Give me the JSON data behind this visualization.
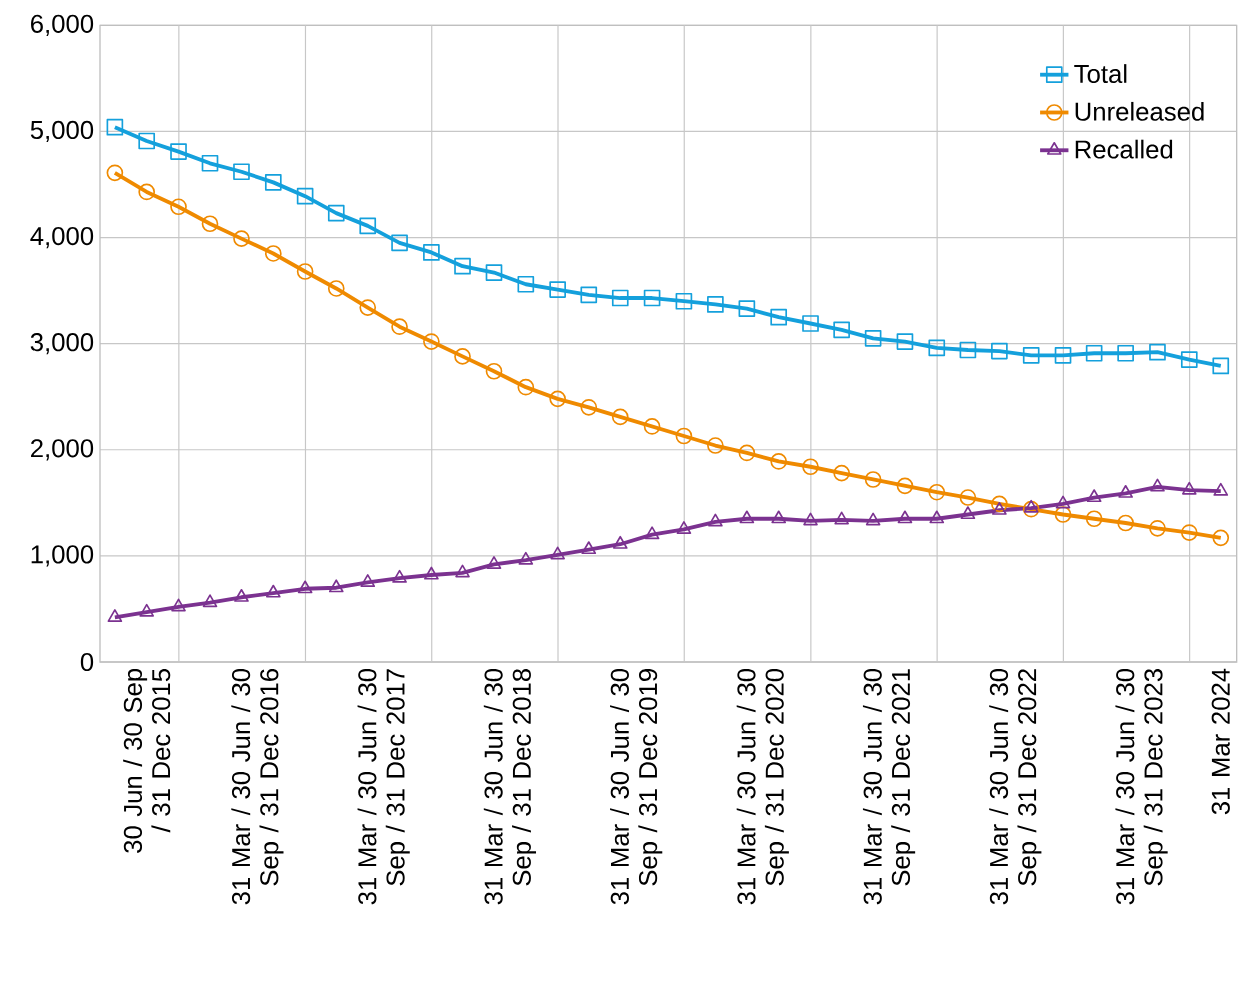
{
  "chart_data": {
    "type": "line",
    "x": [
      "2015-06-30",
      "2015-09-30",
      "2015-12-31",
      "2016-03-31",
      "2016-06-30",
      "2016-09-30",
      "2016-12-31",
      "2017-03-31",
      "2017-06-30",
      "2017-09-30",
      "2017-12-31",
      "2018-03-31",
      "2018-06-30",
      "2018-09-30",
      "2018-12-31",
      "2019-03-31",
      "2019-06-30",
      "2019-09-30",
      "2019-12-31",
      "2020-03-31",
      "2020-06-30",
      "2020-09-30",
      "2020-12-31",
      "2021-03-31",
      "2021-06-30",
      "2021-09-30",
      "2021-12-31",
      "2022-03-31",
      "2022-06-30",
      "2022-09-30",
      "2022-12-31",
      "2023-03-31",
      "2023-06-30",
      "2023-09-30",
      "2023-12-31",
      "2024-03-31"
    ],
    "series": [
      {
        "name": "Total",
        "color": "#14a0dc",
        "marker": "square",
        "values": [
          5040,
          4910,
          4810,
          4700,
          4620,
          4520,
          4390,
          4230,
          4110,
          3950,
          3860,
          3730,
          3670,
          3560,
          3510,
          3460,
          3430,
          3430,
          3400,
          3370,
          3330,
          3250,
          3190,
          3130,
          3050,
          3020,
          2960,
          2940,
          2930,
          2890,
          2890,
          2910,
          2910,
          2920,
          2850,
          2790
        ]
      },
      {
        "name": "Unreleased",
        "color": "#ef8a00",
        "marker": "circle",
        "values": [
          4610,
          4430,
          4290,
          4130,
          3990,
          3850,
          3680,
          3520,
          3340,
          3160,
          3020,
          2880,
          2740,
          2590,
          2480,
          2400,
          2310,
          2220,
          2130,
          2040,
          1970,
          1890,
          1840,
          1780,
          1720,
          1660,
          1600,
          1550,
          1490,
          1440,
          1390,
          1350,
          1310,
          1260,
          1220,
          1170
        ]
      },
      {
        "name": "Recalled",
        "color": "#7b3290",
        "marker": "triangle",
        "values": [
          420,
          470,
          520,
          560,
          610,
          650,
          690,
          700,
          750,
          790,
          820,
          840,
          920,
          960,
          1010,
          1060,
          1110,
          1200,
          1250,
          1320,
          1350,
          1350,
          1330,
          1340,
          1330,
          1350,
          1350,
          1390,
          1430,
          1450,
          1490,
          1550,
          1590,
          1650,
          1620,
          1610
        ]
      }
    ],
    "xlim": [
      "2015-05-18",
      "2024-05-16"
    ],
    "xticks": [
      {
        "value": "2015-09-30",
        "label": "30 Jun / 30 Sep / 31 Dec 2015"
      },
      {
        "value": "2016-01-01",
        "label": null
      },
      {
        "value": "2016-08-15",
        "label": "31 Mar / 30 Jun / 30 Sep / 31 Dec 2016"
      },
      {
        "value": "2017-01-01",
        "label": null
      },
      {
        "value": "2017-08-15",
        "label": "31 Mar / 30 Jun / 30 Sep / 31 Dec 2017"
      },
      {
        "value": "2018-01-01",
        "label": null
      },
      {
        "value": "2018-08-15",
        "label": "31 Mar / 30 Jun / 30 Sep / 31 Dec 2018"
      },
      {
        "value": "2019-01-01",
        "label": null
      },
      {
        "value": "2019-08-15",
        "label": "31 Mar / 30 Jun / 30 Sep / 31 Dec 2019"
      },
      {
        "value": "2020-01-01",
        "label": null
      },
      {
        "value": "2020-08-15",
        "label": "31 Mar / 30 Jun / 30 Sep / 31 Dec 2020"
      },
      {
        "value": "2021-01-01",
        "label": null
      },
      {
        "value": "2021-08-15",
        "label": "31 Mar / 30 Jun / 30 Sep / 31 Dec 2021"
      },
      {
        "value": "2022-01-01",
        "label": null
      },
      {
        "value": "2022-08-15",
        "label": "31 Mar / 30 Jun / 30 Sep / 31 Dec 2022"
      },
      {
        "value": "2023-01-01",
        "label": null
      },
      {
        "value": "2023-08-15",
        "label": "31 Mar / 30 Jun / 30 Sep / 31 Dec 2023"
      },
      {
        "value": "2024-01-01",
        "label": null
      },
      {
        "value": "2024-03-31",
        "label": "31 Mar 2024"
      }
    ],
    "ylim": [
      0,
      6000
    ],
    "yticks": [
      {
        "value": 0,
        "label": "0"
      },
      {
        "value": 1000,
        "label": "1,000"
      },
      {
        "value": 2000,
        "label": "2,000"
      },
      {
        "value": 3000,
        "label": "3,000"
      },
      {
        "value": 4000,
        "label": "4,000"
      },
      {
        "value": 5000,
        "label": "5,000"
      },
      {
        "value": 6000,
        "label": "6,000"
      }
    ],
    "grid": true,
    "legend": "top right",
    "line_style": "solid"
  }
}
